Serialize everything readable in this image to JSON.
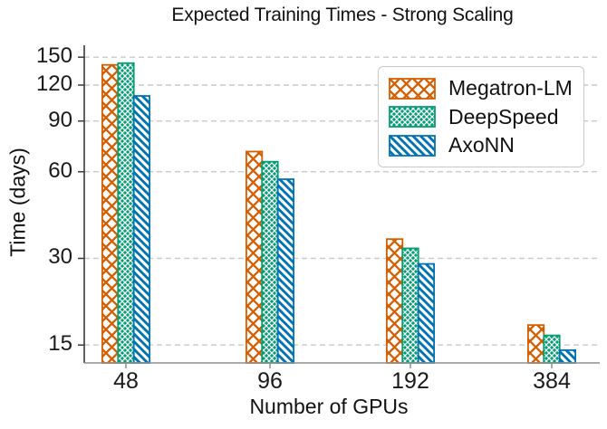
{
  "chart_data": {
    "type": "bar",
    "title": "Expected Training Times - Strong Scaling",
    "xlabel": "Number of GPUs",
    "ylabel": "Time (days)",
    "yscale": "log",
    "ylim": [
      13,
      165
    ],
    "yticks": [
      "15",
      "30",
      "60",
      "90",
      "120",
      "150"
    ],
    "ytick_values": [
      15,
      30,
      60,
      90,
      120,
      150
    ],
    "categories": [
      "48",
      "96",
      "192",
      "384"
    ],
    "series": [
      {
        "name": "Megatron-LM",
        "values": [
          141,
          70.5,
          35,
          17.6
        ],
        "color": "#D55E00",
        "hatch": "crosshatch-open"
      },
      {
        "name": "DeepSpeed",
        "values": [
          143,
          65,
          32.5,
          16.2
        ],
        "color": "#029E73",
        "hatch": "crosshatch-dense-filled"
      },
      {
        "name": "AxoNN",
        "values": [
          110,
          56.5,
          28.7,
          14.4
        ],
        "color": "#0173B2",
        "hatch": "diagonal-backslash"
      }
    ],
    "legend_position": "upper right",
    "grid": "horizontal dashed"
  },
  "colors": {
    "background": "#ffffff",
    "grid": "#c9c9c9",
    "left_axis": "#3a3a3a",
    "bottom_axis": "#8f8f8f",
    "text": "#1a1a1a",
    "legend_border": "#c9c9c9"
  }
}
